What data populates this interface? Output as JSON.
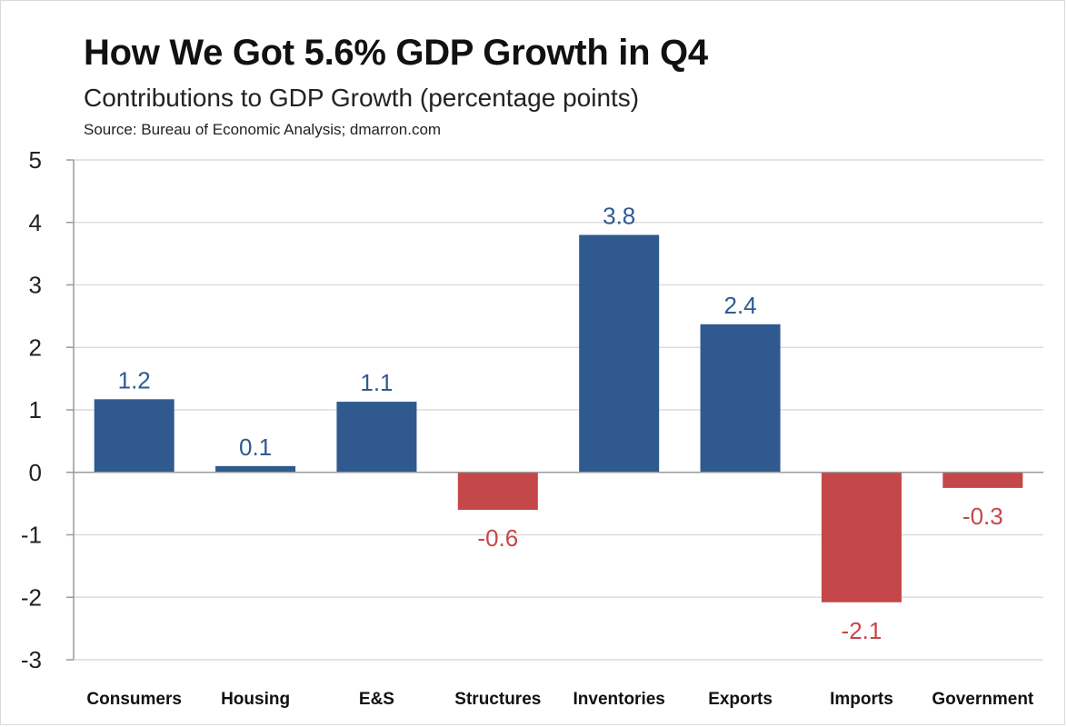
{
  "header": {
    "title": "How We Got 5.6% GDP Growth in Q4",
    "subtitle": "Contributions to GDP Growth (percentage points)",
    "source": "Source: Bureau of Economic Analysis; dmarron.com"
  },
  "colors": {
    "positive": "#305a8f",
    "negative": "#c4474a"
  },
  "chart_data": {
    "type": "bar",
    "title": "How We Got 5.6% GDP Growth in Q4",
    "subtitle": "Contributions to GDP Growth (percentage points)",
    "xlabel": "",
    "ylabel": "",
    "ylim": [
      -3,
      5
    ],
    "yticks": [
      "5",
      "4",
      "3",
      "2",
      "1",
      "0",
      "-1",
      "-2",
      "-3"
    ],
    "grid": true,
    "legend": "none",
    "categories": [
      "Consumers",
      "Housing",
      "E&S",
      "Structures",
      "Inventories",
      "Exports",
      "Imports",
      "Government"
    ],
    "values": [
      1.17,
      0.1,
      1.13,
      -0.6,
      3.8,
      2.37,
      -2.08,
      -0.25
    ],
    "data_labels": [
      "1.2",
      "0.1",
      "1.1",
      "-0.6",
      "3.8",
      "2.4",
      "-2.1",
      "-0.3"
    ]
  }
}
